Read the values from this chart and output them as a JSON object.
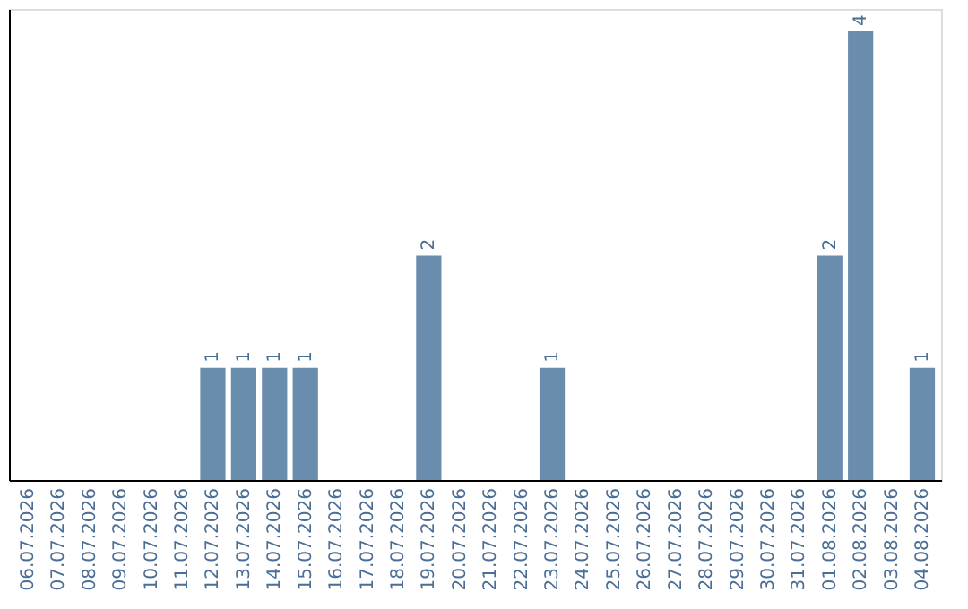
{
  "chart_data": {
    "type": "bar",
    "categories": [
      "06.07.2026",
      "07.07.2026",
      "08.07.2026",
      "09.07.2026",
      "10.07.2026",
      "11.07.2026",
      "12.07.2026",
      "13.07.2026",
      "14.07.2026",
      "15.07.2026",
      "16.07.2026",
      "17.07.2026",
      "18.07.2026",
      "19.07.2026",
      "20.07.2026",
      "21.07.2026",
      "22.07.2026",
      "23.07.2026",
      "24.07.2026",
      "25.07.2026",
      "26.07.2026",
      "27.07.2026",
      "28.07.2026",
      "29.07.2026",
      "30.07.2026",
      "31.07.2026",
      "01.08.2026",
      "02.08.2026",
      "03.08.2026",
      "04.08.2026"
    ],
    "values": [
      0,
      0,
      0,
      0,
      0,
      0,
      1,
      1,
      1,
      1,
      0,
      0,
      0,
      2,
      0,
      0,
      0,
      1,
      0,
      0,
      0,
      0,
      0,
      0,
      0,
      0,
      2,
      4,
      0,
      1
    ],
    "value_labels": [
      null,
      null,
      null,
      null,
      null,
      null,
      "1",
      "1",
      "1",
      "1",
      null,
      null,
      null,
      "2",
      null,
      null,
      null,
      "1",
      null,
      null,
      null,
      null,
      null,
      null,
      null,
      null,
      "2",
      "4",
      null,
      "1"
    ],
    "color": "#6a8cad",
    "ylim": [
      0,
      4.2
    ],
    "grid": false,
    "tick_labels": "x"
  }
}
